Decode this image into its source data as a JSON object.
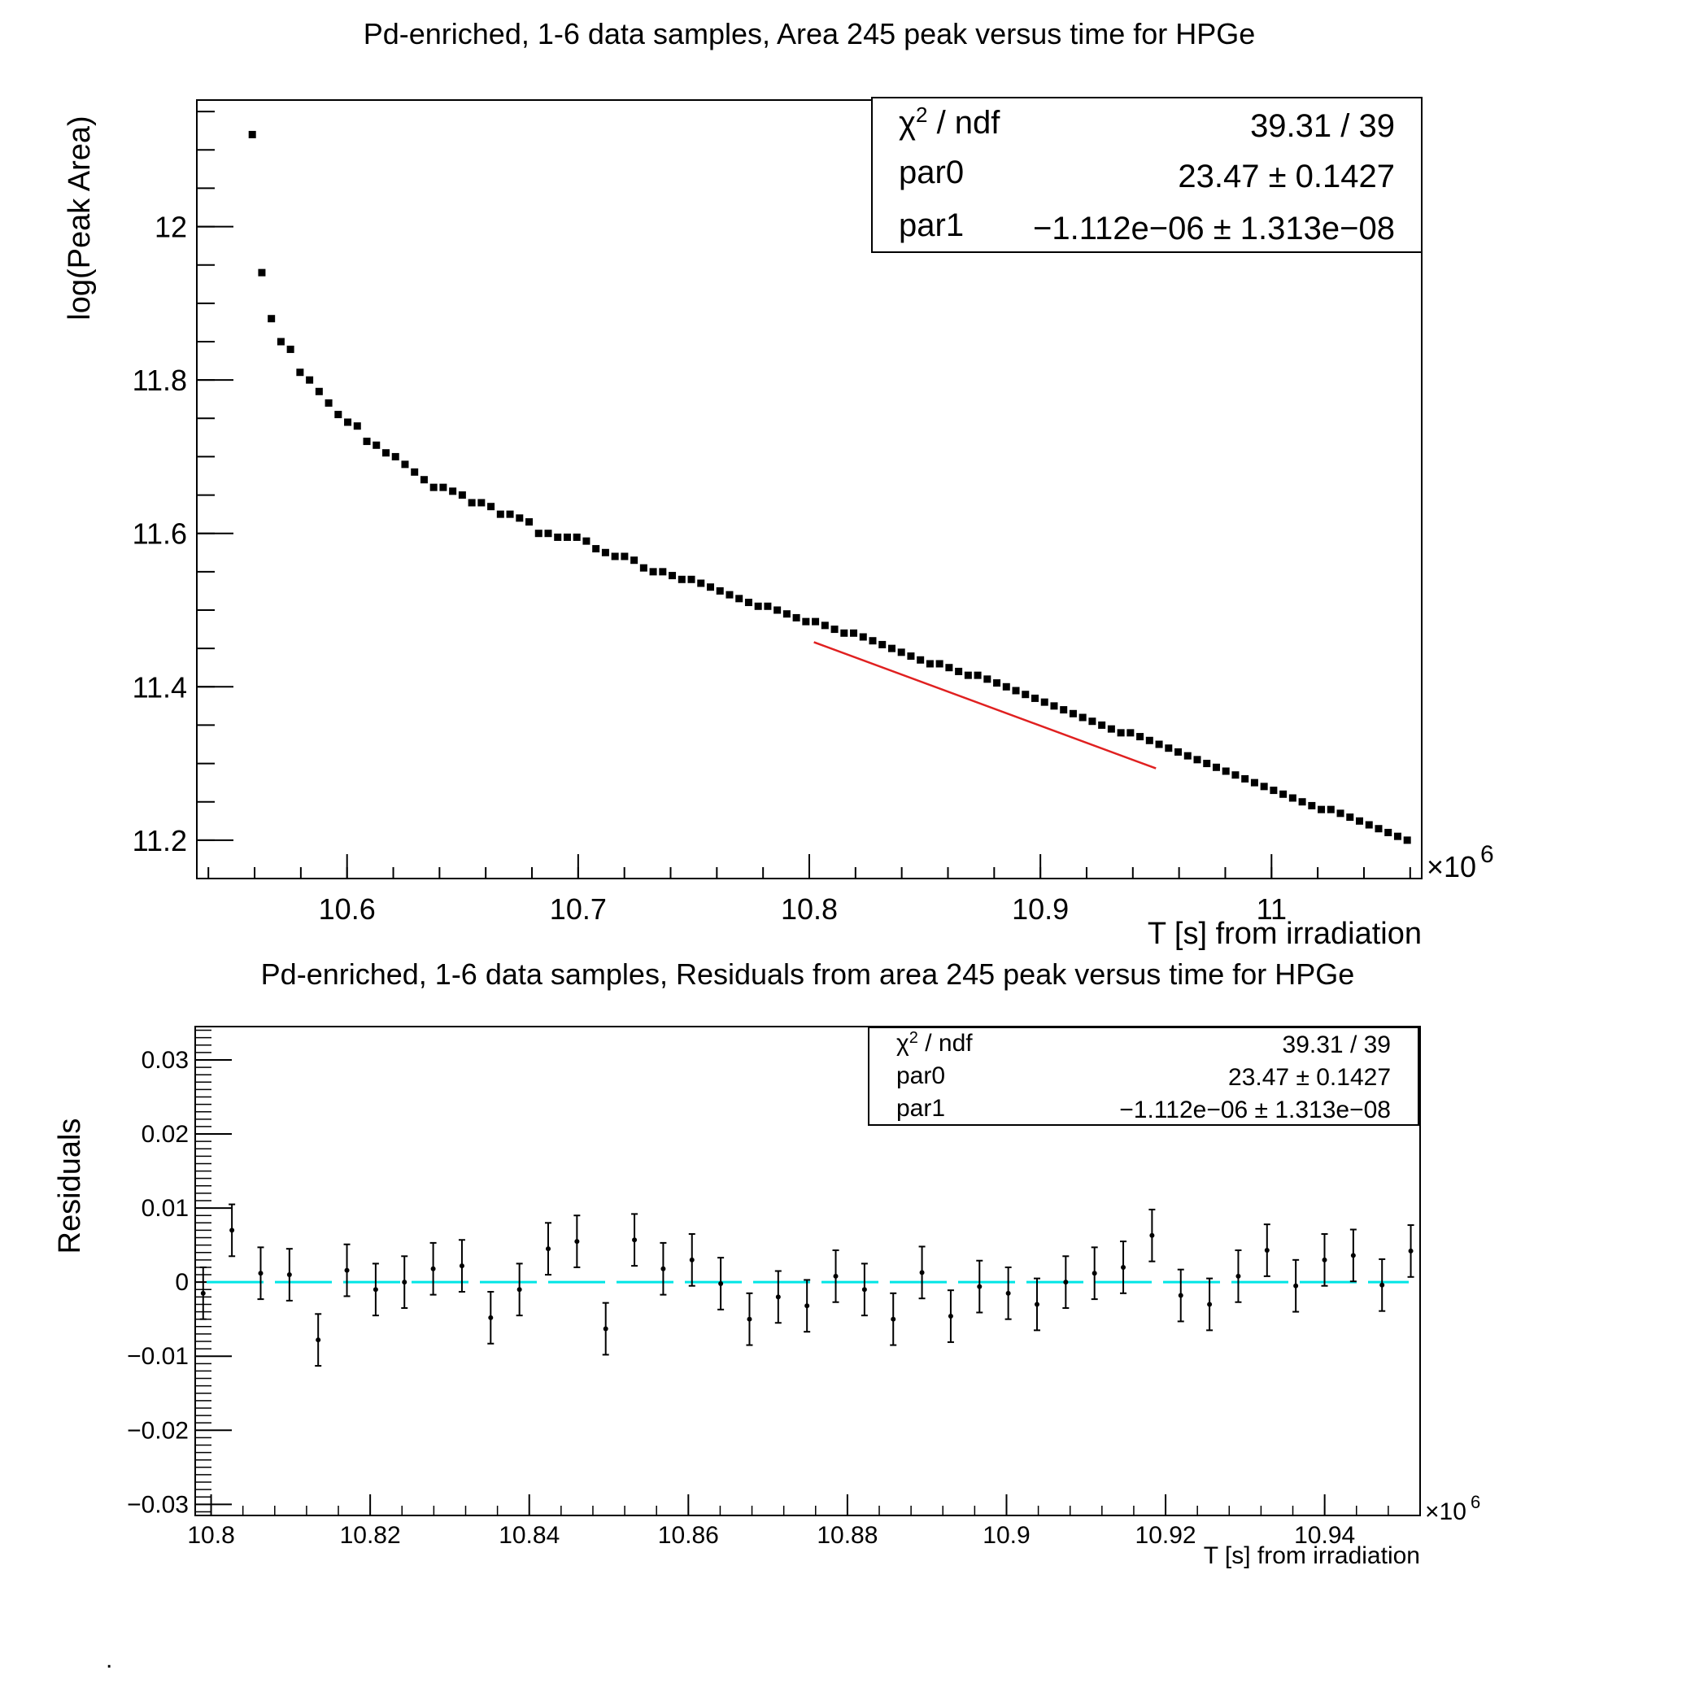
{
  "chart_data": [
    {
      "type": "scatter",
      "title": "Pd-enriched, 1-6 data samples,  Area 245 peak versus time for HPGe",
      "xlabel": "T [s] from irradiation",
      "ylabel": "log(Peak Area)",
      "x_multiplier": "×10",
      "x_multiplier_exp": "6",
      "xlim": [
        10.535,
        11.065
      ],
      "ylim": [
        11.15,
        12.165
      ],
      "x_ticks": [
        "10.6",
        "10.7",
        "10.8",
        "10.9",
        "11"
      ],
      "y_ticks": [
        "11.2",
        "11.4",
        "11.6",
        "11.8",
        "12"
      ],
      "series": [
        {
          "marker": "square",
          "color": "#000000",
          "x_start": 10.559,
          "x_step": 0.00413,
          "y": [
            12.12,
            11.94,
            11.88,
            11.85,
            11.84,
            11.81,
            11.8,
            11.785,
            11.77,
            11.755,
            11.745,
            11.74,
            11.72,
            11.715,
            11.705,
            11.7,
            11.69,
            11.68,
            11.67,
            11.66,
            11.66,
            11.655,
            11.65,
            11.64,
            11.64,
            11.635,
            11.625,
            11.625,
            11.62,
            11.615,
            11.6,
            11.6,
            11.595,
            11.595,
            11.595,
            11.59,
            11.58,
            11.575,
            11.57,
            11.57,
            11.565,
            11.555,
            11.55,
            11.55,
            11.545,
            11.54,
            11.54,
            11.535,
            11.53,
            11.525,
            11.52,
            11.515,
            11.51,
            11.505,
            11.505,
            11.5,
            11.495,
            11.49,
            11.485,
            11.485,
            11.48,
            11.475,
            11.47,
            11.47,
            11.465,
            11.46,
            11.455,
            11.45,
            11.445,
            11.44,
            11.435,
            11.43,
            11.43,
            11.425,
            11.42,
            11.415,
            11.415,
            11.41,
            11.405,
            11.4,
            11.395,
            11.39,
            11.385,
            11.38,
            11.375,
            11.37,
            11.365,
            11.36,
            11.355,
            11.35,
            11.345,
            11.34,
            11.34,
            11.335,
            11.33,
            11.325,
            11.32,
            11.315,
            11.31,
            11.305,
            11.3,
            11.295,
            11.29,
            11.285,
            11.28,
            11.275,
            11.27,
            11.265,
            11.26,
            11.255,
            11.25,
            11.245,
            11.24,
            11.24,
            11.235,
            11.23,
            11.225,
            11.22,
            11.215,
            11.21,
            11.205,
            11.2
          ]
        }
      ],
      "fit": {
        "name": "",
        "color": "#e02020",
        "x_range": [
          10.802,
          10.95
        ],
        "par0": 23.47,
        "par1": -1.112e-06
      },
      "stats_box": {
        "rows": [
          {
            "label": "χ²/ndf",
            "value": "39.31 / 39"
          },
          {
            "label": "par0",
            "value": "23.47 ± 0.1427"
          },
          {
            "label": "par1",
            "value": "−1.112e−06 ± 1.313e−08"
          }
        ]
      }
    },
    {
      "type": "scatter",
      "title": "Pd-enriched, 1-6 data samples,  Residuals from area 245 peak versus time for HPGe",
      "xlabel": "T [s] from irradiation",
      "ylabel": "Residuals",
      "x_multiplier": "×10",
      "x_multiplier_exp": "6",
      "xlim": [
        10.798,
        10.952
      ],
      "ylim": [
        -0.0315,
        0.0345
      ],
      "x_ticks": [
        "10.8",
        "10.82",
        "10.84",
        "10.86",
        "10.88",
        "10.9",
        "10.92",
        "10.94"
      ],
      "y_ticks": [
        "0.03",
        "0.02",
        "0.01",
        "0",
        "−0.01",
        "−0.02",
        "−0.03"
      ],
      "series": [
        {
          "marker": "point-errorbar",
          "color": "#000000",
          "x_start": 10.799,
          "x_step": 0.003615,
          "y": [
            -0.0015,
            0.007,
            0.0012,
            0.001,
            -0.0078,
            0.0016,
            -0.001,
            0.0,
            0.0018,
            0.0022,
            -0.0048,
            -0.001,
            0.0045,
            0.0055,
            -0.0063,
            0.0057,
            0.0018,
            0.003,
            -0.0002,
            -0.005,
            -0.002,
            -0.0032,
            0.0008,
            -0.001,
            -0.005,
            0.0013,
            -0.0046,
            -0.0006,
            -0.0015,
            -0.003,
            0.0,
            0.0012,
            0.002,
            0.0063,
            -0.0018,
            -0.003,
            0.0008,
            0.0043,
            -0.0005,
            0.003,
            0.0036,
            -0.0004,
            0.0042
          ],
          "error": 0.0035
        }
      ],
      "reference_line": {
        "y": 0,
        "color": "#00e5e5",
        "style": "dashed"
      },
      "stats_box": {
        "rows": [
          {
            "label": "χ²/ndf",
            "value": "39.31 / 39"
          },
          {
            "label": "par0",
            "value": "23.47 ± 0.1427"
          },
          {
            "label": "par1",
            "value": "−1.112e−06 ± 1.313e−08"
          }
        ]
      }
    }
  ],
  "footer_dot": "."
}
